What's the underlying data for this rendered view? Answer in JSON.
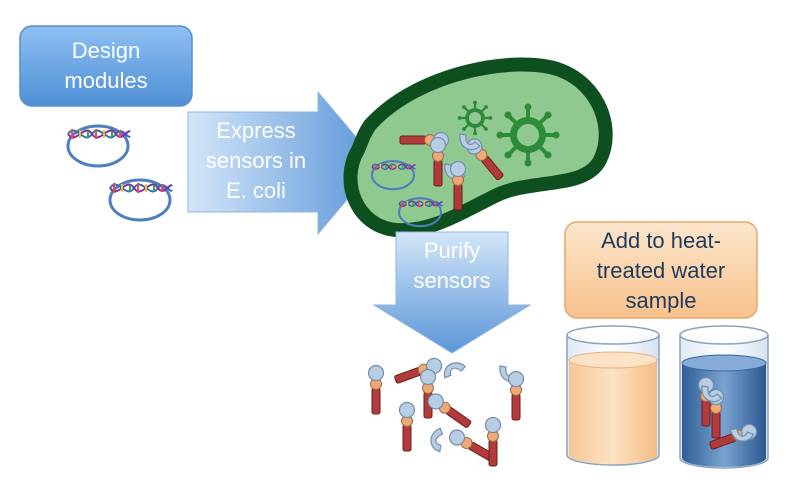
{
  "steps": {
    "design": "Design modules",
    "express": "Express sensors in E. coli",
    "purify": "Purify sensors",
    "add": "Add to heat-treated water sample"
  },
  "lines": {
    "design": [
      "Design",
      "modules"
    ],
    "express": [
      "Express",
      "sensors in",
      "E. coli"
    ],
    "purify": [
      "Purify",
      "sensors"
    ],
    "add": [
      "Add to heat-",
      "treated water",
      "sample"
    ]
  },
  "colors": {
    "blue_box": "#6aa6e6",
    "blue_box_dark": "#4a86cf",
    "arrow_light": "#c7def7",
    "arrow_dark": "#5d97d8",
    "peach_box": "#fbd3a8",
    "cell_outline": "#0d4f1e",
    "cell_fill": "#8fc98f",
    "virus": "#2e8b3a",
    "sensor_red": "#b23a3a",
    "sensor_ball": "#b7cbe0",
    "sensor_joint": "#f0a875",
    "water_orange": "#f9d2a9",
    "water_blue": "#3e6fa8"
  },
  "icons": [
    "dna-plasmid-icon",
    "virus-icon",
    "sensor-protein-icon",
    "beaker-icon"
  ]
}
